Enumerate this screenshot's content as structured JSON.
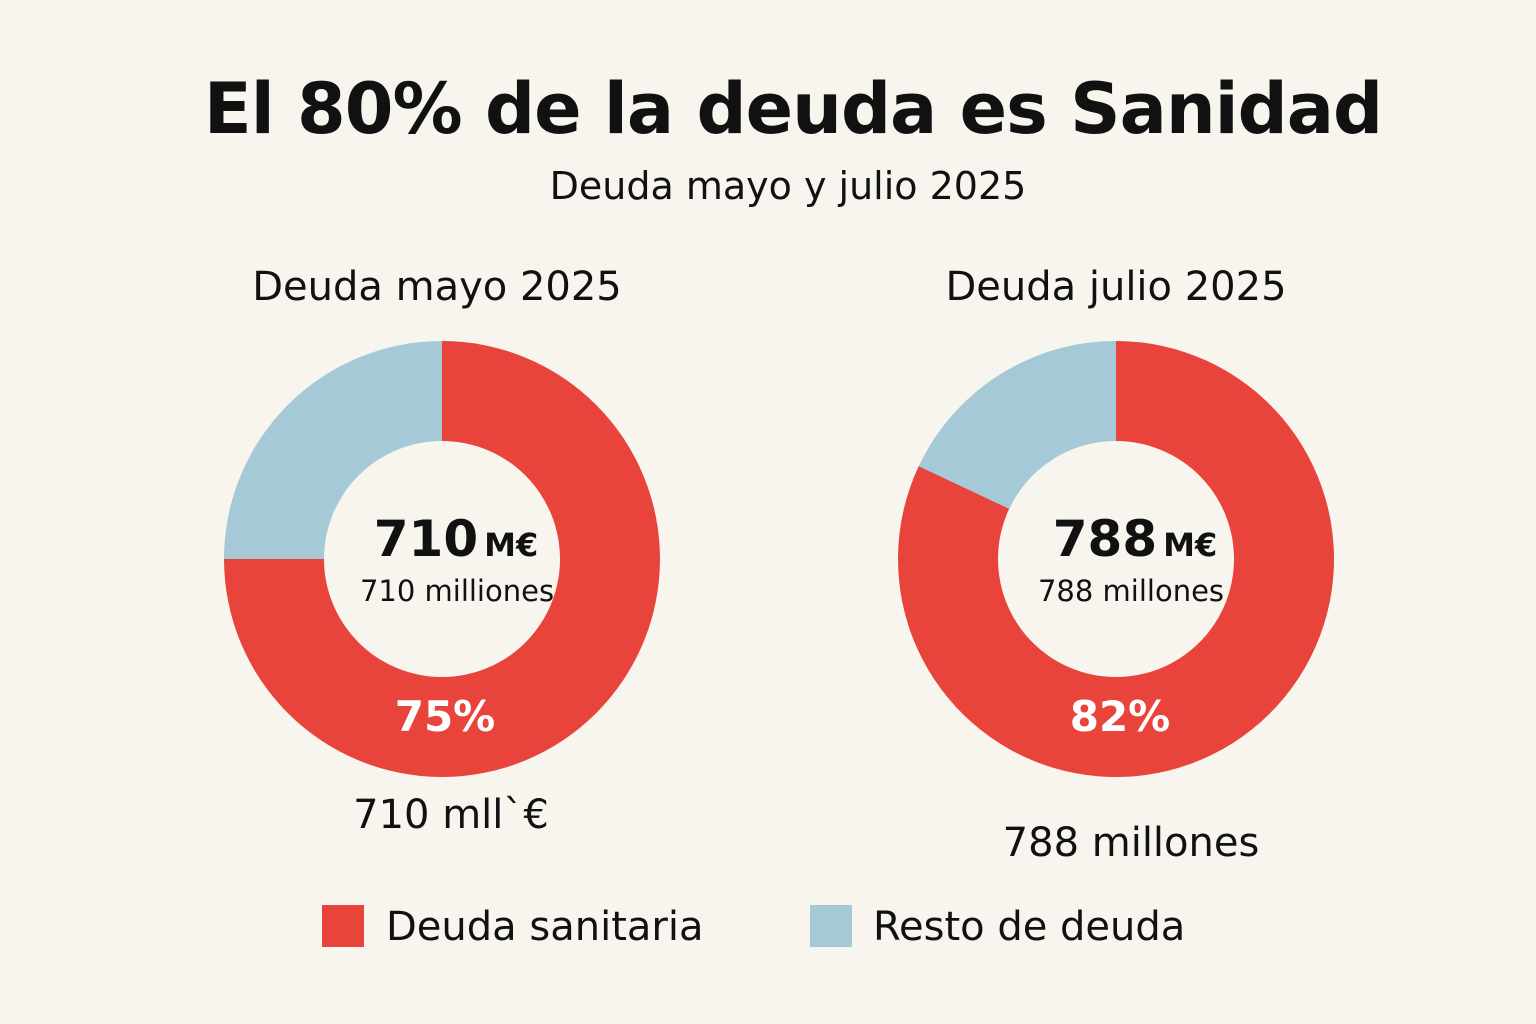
{
  "title": "El 80% de la deuda es Sanidad",
  "subtitle": "Deuda mayo y julio 2025",
  "colors": {
    "sanitaria": "#e8443b",
    "resto": "#a6c9d8",
    "background": "#f8f5ef"
  },
  "chart_data": [
    {
      "type": "pie",
      "variant": "donut",
      "title": "Deuda mayo 2025",
      "categories": [
        "Deuda sanitaria",
        "Resto de deuda"
      ],
      "values": [
        75,
        25
      ],
      "center_value": "710",
      "center_unit": "M€",
      "center_caption": "710 milliones",
      "slice_label": "75%",
      "below_label": "710 mll`€"
    },
    {
      "type": "pie",
      "variant": "donut",
      "title": "Deuda julio 2025",
      "categories": [
        "Deuda sanitaria",
        "Resto de deuda"
      ],
      "values": [
        82,
        18
      ],
      "center_value": "788",
      "center_unit": "M€",
      "center_caption": "788 millones",
      "slice_label": "82%",
      "below_label": "788 millones"
    }
  ],
  "legend": {
    "placement": "bottom",
    "items": [
      {
        "label": "Deuda sanitaria",
        "color": "#e8443b"
      },
      {
        "label": "Resto de deuda",
        "color": "#a6c9d8"
      }
    ]
  }
}
